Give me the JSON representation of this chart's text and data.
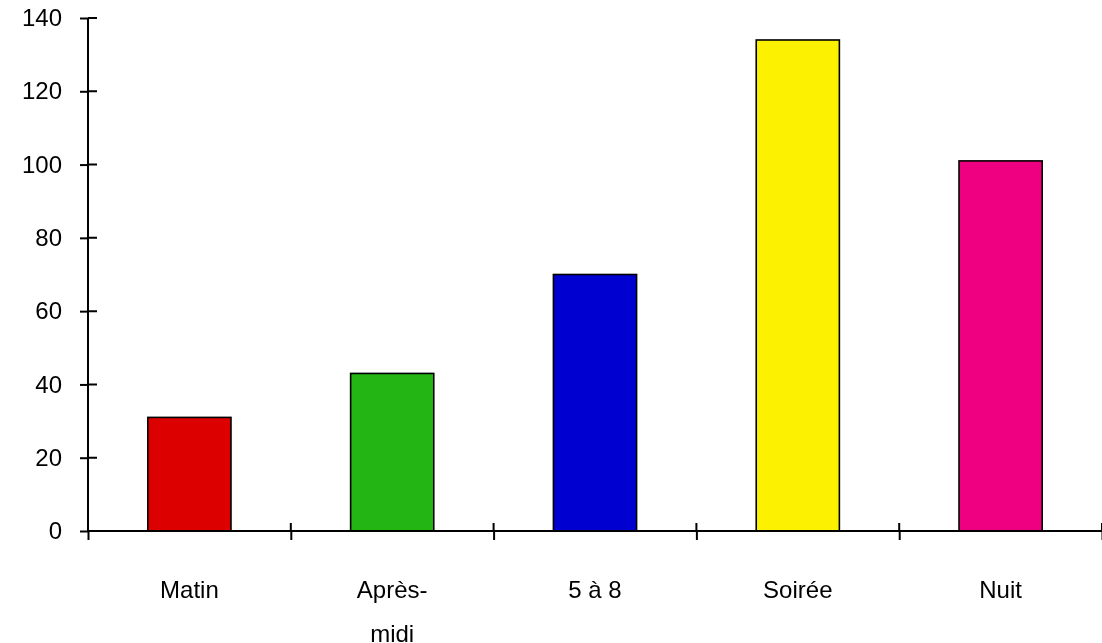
{
  "chart_data": {
    "type": "bar",
    "categories": [
      "Matin",
      "Après-midi",
      "5 à 8",
      "Soirée",
      "Nuit"
    ],
    "values": [
      31,
      43,
      70,
      134,
      101
    ],
    "colors": [
      "#dd0000",
      "#22b514",
      "#0000d0",
      "#fbf100",
      "#ef0080"
    ],
    "ylim": [
      0,
      140
    ],
    "yticks": [
      0,
      20,
      40,
      60,
      80,
      100,
      120,
      140
    ],
    "grid": false
  }
}
